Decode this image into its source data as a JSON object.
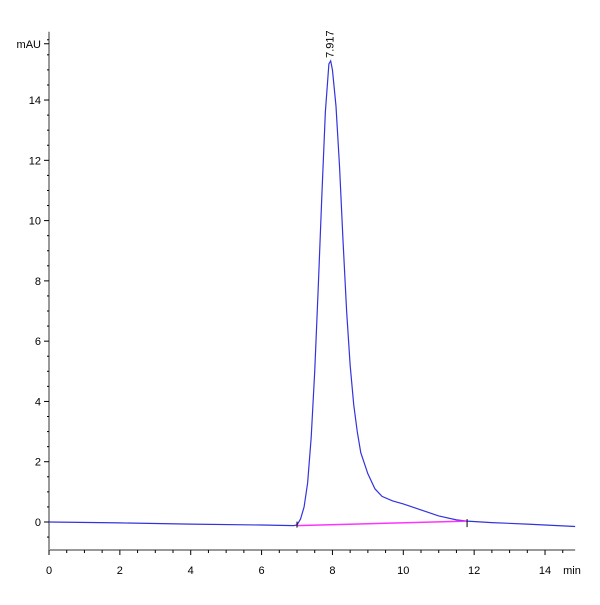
{
  "chart_data": {
    "type": "line",
    "title": "",
    "xlabel": "min",
    "ylabel": "mAU",
    "xlim": [
      0,
      14.85
    ],
    "ylim": [
      -0.93,
      16
    ],
    "x_ticks": [
      0,
      2,
      4,
      6,
      8,
      10,
      12,
      14
    ],
    "y_ticks": [
      0,
      2,
      4,
      6,
      8,
      10,
      12,
      14
    ],
    "grid": false,
    "series": [
      {
        "color": "#3333dd",
        "x": [
          0,
          2,
          4,
          6,
          6.9,
          7.0,
          7.1,
          7.2,
          7.3,
          7.4,
          7.5,
          7.6,
          7.7,
          7.8,
          7.9,
          7.95,
          8.0,
          8.1,
          8.2,
          8.3,
          8.4,
          8.5,
          8.6,
          8.7,
          8.8,
          9.0,
          9.2,
          9.4,
          9.7,
          10,
          10.5,
          11,
          11.5,
          11.8,
          12.5,
          13.5,
          14.85
        ],
        "y": [
          0,
          -0.03,
          -0.07,
          -0.1,
          -0.12,
          -0.1,
          0.1,
          0.5,
          1.3,
          2.8,
          5,
          7.8,
          10.8,
          13.6,
          15.2,
          15.3,
          15.0,
          13.8,
          11.8,
          9.3,
          7.0,
          5.2,
          3.9,
          3.0,
          2.3,
          1.6,
          1.1,
          0.85,
          0.7,
          0.6,
          0.4,
          0.2,
          0.07,
          0.03,
          -0.02,
          -0.07,
          -0.15
        ]
      }
    ],
    "baseline": {
      "color": "#ff33ff",
      "x": [
        7.0,
        11.8
      ],
      "y": [
        -0.12,
        0.03
      ]
    },
    "annotations": [
      {
        "text": "7.917",
        "x": 7.917,
        "y": 15.3
      }
    ]
  }
}
